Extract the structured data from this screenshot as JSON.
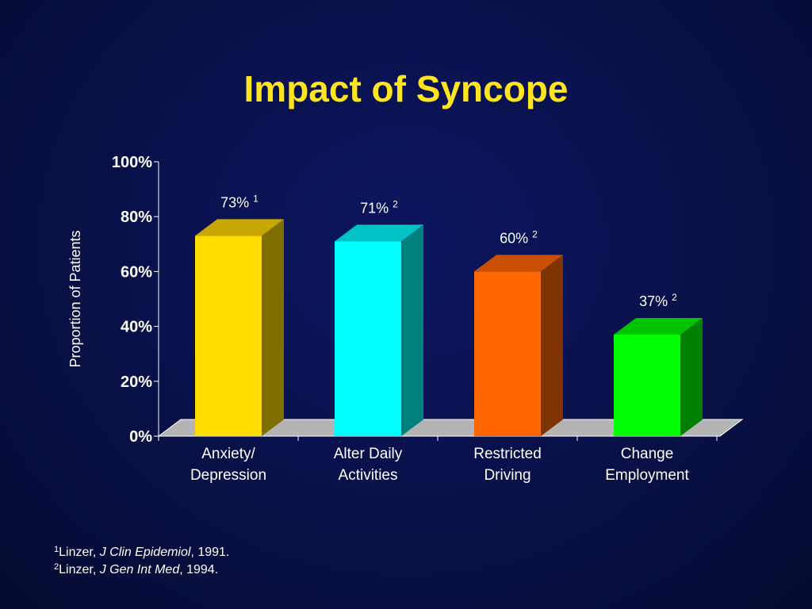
{
  "title": "Impact of Syncope",
  "chart_data": {
    "type": "bar",
    "ylabel": "Proportion of Patients",
    "ylim": [
      0,
      100
    ],
    "yticks": [
      "0%",
      "20%",
      "40%",
      "60%",
      "80%",
      "100%"
    ],
    "categories": [
      [
        "Anxiety/",
        "Depression"
      ],
      [
        "Alter Daily",
        "Activities"
      ],
      [
        "Restricted",
        "Driving"
      ],
      [
        "Change",
        "Employment"
      ]
    ],
    "values": [
      73,
      71,
      60,
      37
    ],
    "value_labels": [
      "73%",
      "71%",
      "60%",
      "37%"
    ],
    "value_refs": [
      "1",
      "2",
      "2",
      "2"
    ],
    "colors": [
      {
        "front": "#FFDD00",
        "top": "#C8A800",
        "side": "#7F6E00"
      },
      {
        "front": "#00FFFF",
        "top": "#00C4C4",
        "side": "#007F7F"
      },
      {
        "front": "#FF6600",
        "top": "#C85000",
        "side": "#7F3300"
      },
      {
        "front": "#00FF00",
        "top": "#00C400",
        "side": "#007F00"
      }
    ],
    "floor_color": "#B4B4B4",
    "text_color": "#ffffff"
  },
  "references": [
    {
      "num": "1",
      "author": "Linzer,",
      "journal": "J Clin Epidemiol",
      "year": ", 1991."
    },
    {
      "num": "2",
      "author": "Linzer,",
      "journal": "J Gen Int Med",
      "year": ", 1994."
    }
  ]
}
